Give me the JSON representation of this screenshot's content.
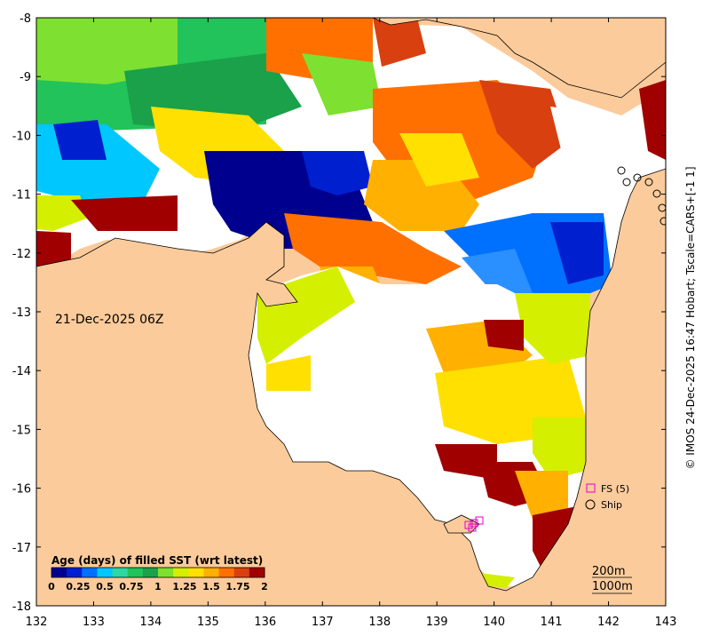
{
  "map": {
    "date_label": "21-Dec-2025 06Z",
    "copyright": "© IMOS 24-Dec-2025 16:47 Hobart; Tscale=CARS+[-1 1]",
    "x_ticks": [
      "132",
      "133",
      "134",
      "135",
      "136",
      "137",
      "138",
      "139",
      "140",
      "141",
      "142",
      "143"
    ],
    "y_ticks": [
      "-8",
      "-9",
      "-10",
      "-11",
      "-12",
      "-13",
      "-14",
      "-15",
      "-16",
      "-17",
      "-18"
    ],
    "lon_range": [
      132,
      143
    ],
    "lat_range": [
      -18,
      -8
    ],
    "land_color": "#fbcb9b",
    "colorbar": {
      "title": "Age (days) of filled SST (wrt latest)",
      "ticks": [
        "0",
        "0.25",
        "0.5",
        "0.75",
        "1",
        "1.25",
        "1.5",
        "1.75",
        "2"
      ],
      "colors": [
        "#00008f",
        "#0020d0",
        "#0070ff",
        "#00c8ff",
        "#2ed8a0",
        "#22c35a",
        "#1aa14a",
        "#7ee030",
        "#d4ef00",
        "#ffe000",
        "#ffb000",
        "#ff7000",
        "#d84010",
        "#a00000"
      ]
    },
    "legend": {
      "fs_label": "FS (5)",
      "ship_label": "Ship",
      "fs_color": "#e000c8"
    },
    "contours": {
      "c200": "200m",
      "c1000": "1000m"
    }
  }
}
